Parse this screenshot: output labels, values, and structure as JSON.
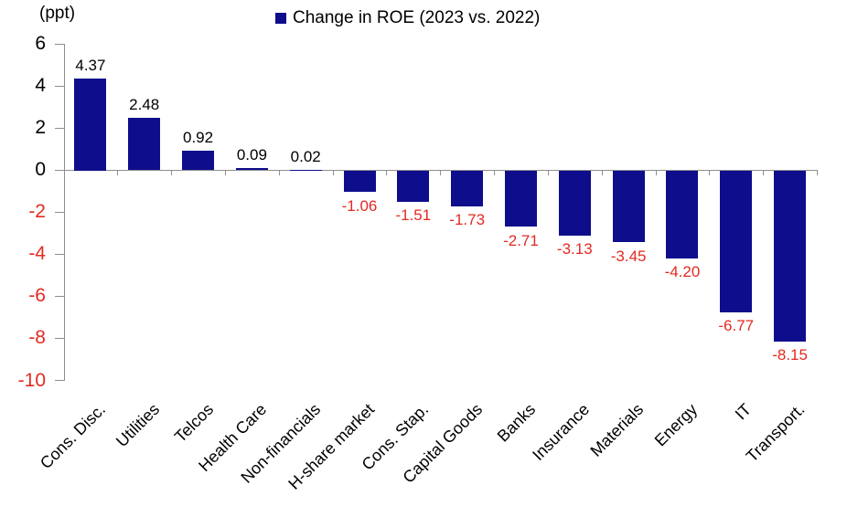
{
  "chart_data": {
    "type": "bar",
    "title": "Change in ROE (2023 vs. 2022)",
    "unit_label": "(ppt)",
    "categories": [
      "Cons. Disc.",
      "Utilities",
      "Telcos",
      "Health Care",
      "Non-financials",
      "H-share market",
      "Cons. Stap.",
      "Capital Goods",
      "Banks",
      "Insurance",
      "Materials",
      "Energy",
      "IT",
      "Transport."
    ],
    "values": [
      4.37,
      2.48,
      0.92,
      0.09,
      0.02,
      -1.06,
      -1.51,
      -1.73,
      -2.71,
      -3.13,
      -3.45,
      -4.2,
      -6.77,
      -8.15
    ],
    "ylim": [
      -10,
      6
    ],
    "yticks": [
      6,
      4,
      2,
      0,
      -2,
      -4,
      -6,
      -8,
      -10
    ],
    "grid": false,
    "legend_position": "top",
    "x_label_rotation": 45,
    "value_label_decimals": 2,
    "colors": {
      "bar": "#0e0e8c",
      "positive_label": "#000000",
      "negative_label": "#e22b22",
      "negative_tick_label": "#e22b22",
      "axis": "#8e8e8e"
    }
  }
}
